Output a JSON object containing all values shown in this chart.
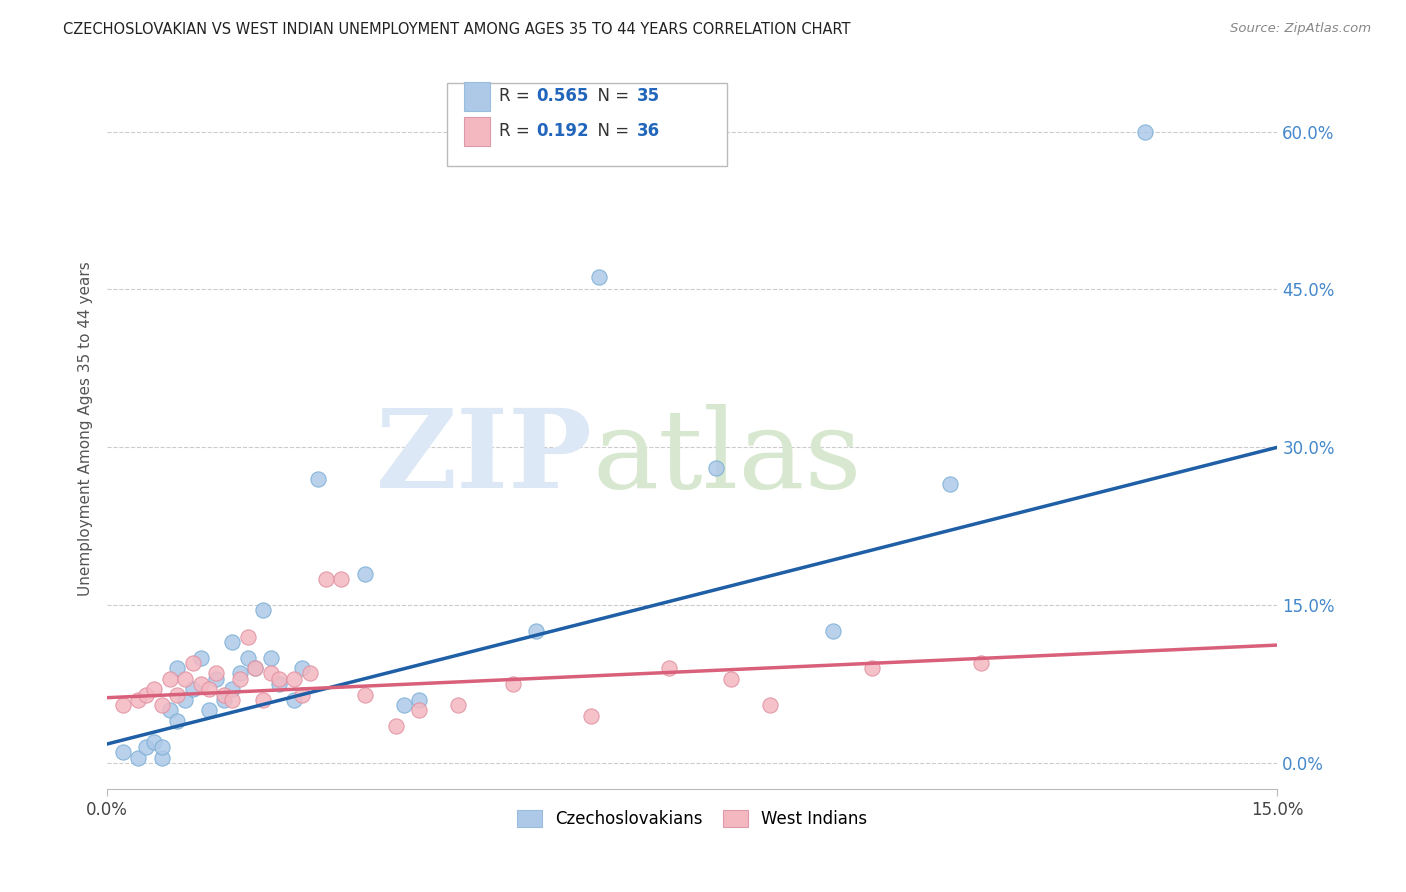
{
  "title": "CZECHOSLOVAKIAN VS WEST INDIAN UNEMPLOYMENT AMONG AGES 35 TO 44 YEARS CORRELATION CHART",
  "source": "Source: ZipAtlas.com",
  "ylabel": "Unemployment Among Ages 35 to 44 years",
  "xlim": [
    0.0,
    0.15
  ],
  "ylim": [
    -0.025,
    0.66
  ],
  "right_yticks": [
    0.0,
    0.15,
    0.3,
    0.45,
    0.6
  ],
  "right_yticklabels": [
    "0.0%",
    "15.0%",
    "30.0%",
    "45.0%",
    "60.0%"
  ],
  "xticks": [
    0.0,
    0.15
  ],
  "xticklabels": [
    "0.0%",
    "15.0%"
  ],
  "legend1_R": "0.565",
  "legend1_N": "35",
  "legend2_R": "0.192",
  "legend2_N": "36",
  "blue_color": "#aec9e8",
  "pink_color": "#f4b8c1",
  "blue_line_color": "#1f5fa6",
  "pink_line_color": "#d9607a",
  "blue_line_x0": 0.0,
  "blue_line_y0": 0.018,
  "blue_line_x1": 0.15,
  "blue_line_y1": 0.3,
  "pink_line_x0": 0.0,
  "pink_line_y0": 0.062,
  "pink_line_x1": 0.15,
  "pink_line_y1": 0.112,
  "czecho_x": [
    0.002,
    0.004,
    0.005,
    0.006,
    0.007,
    0.007,
    0.008,
    0.009,
    0.009,
    0.01,
    0.011,
    0.012,
    0.013,
    0.014,
    0.015,
    0.016,
    0.016,
    0.017,
    0.018,
    0.019,
    0.02,
    0.021,
    0.022,
    0.024,
    0.025,
    0.027,
    0.033,
    0.038,
    0.04,
    0.055,
    0.063,
    0.078,
    0.093,
    0.108,
    0.133
  ],
  "czecho_y": [
    0.01,
    0.005,
    0.015,
    0.02,
    0.005,
    0.015,
    0.05,
    0.04,
    0.09,
    0.06,
    0.07,
    0.1,
    0.05,
    0.08,
    0.06,
    0.115,
    0.07,
    0.085,
    0.1,
    0.09,
    0.145,
    0.1,
    0.075,
    0.06,
    0.09,
    0.27,
    0.18,
    0.055,
    0.06,
    0.125,
    0.462,
    0.28,
    0.125,
    0.265,
    0.6
  ],
  "westindian_x": [
    0.002,
    0.004,
    0.005,
    0.006,
    0.007,
    0.008,
    0.009,
    0.01,
    0.011,
    0.012,
    0.013,
    0.014,
    0.015,
    0.016,
    0.017,
    0.018,
    0.019,
    0.02,
    0.021,
    0.022,
    0.024,
    0.025,
    0.026,
    0.028,
    0.03,
    0.033,
    0.037,
    0.04,
    0.045,
    0.052,
    0.062,
    0.072,
    0.08,
    0.085,
    0.098,
    0.112
  ],
  "westindian_y": [
    0.055,
    0.06,
    0.065,
    0.07,
    0.055,
    0.08,
    0.065,
    0.08,
    0.095,
    0.075,
    0.07,
    0.085,
    0.065,
    0.06,
    0.08,
    0.12,
    0.09,
    0.06,
    0.085,
    0.08,
    0.08,
    0.065,
    0.085,
    0.175,
    0.175,
    0.065,
    0.035,
    0.05,
    0.055,
    0.075,
    0.045,
    0.09,
    0.08,
    0.055,
    0.09,
    0.095
  ]
}
